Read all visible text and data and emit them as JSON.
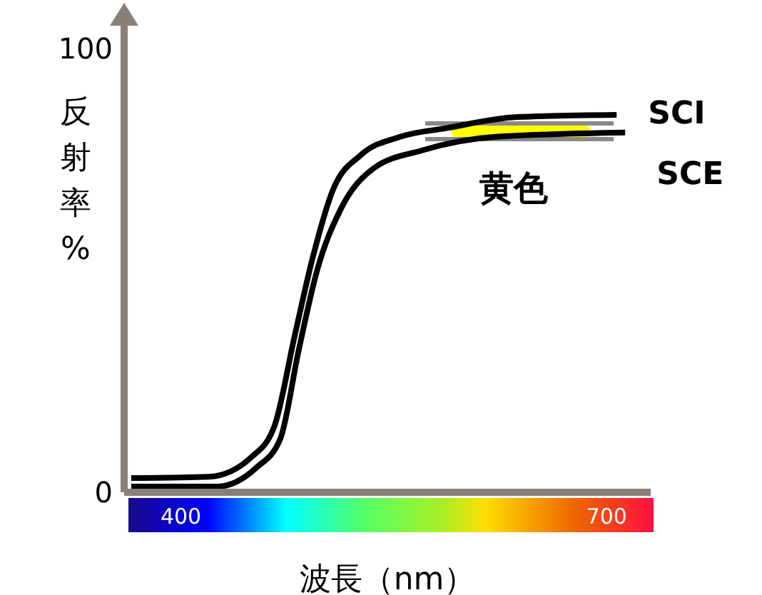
{
  "chart_data": {
    "type": "line",
    "xlabel": "波長（nm）",
    "ylabel": "反射率%",
    "annotations": [
      "黄色"
    ],
    "xlim": [
      360,
      731
    ],
    "ylim": [
      0,
      107
    ],
    "xticks": [
      400,
      700
    ],
    "yticks": [
      0,
      100
    ],
    "series": [
      {
        "name": "SCI",
        "color": "#000000",
        "x": [
          365,
          420,
          450,
          466,
          480,
          493,
          507,
          527,
          554,
          587,
          637,
          707
        ],
        "values": [
          3.2,
          3.5,
          8,
          15,
          35,
          53,
          68,
          76,
          80,
          82,
          84.5,
          85
        ]
      },
      {
        "name": "SCE",
        "color": "#000000",
        "x": [
          365,
          426,
          453,
          470,
          483,
          496,
          513,
          536,
          570,
          620,
          713
        ],
        "values": [
          1.3,
          1.3,
          5.5,
          12,
          32,
          50,
          64,
          73,
          77,
          80,
          81
        ]
      }
    ]
  }
}
